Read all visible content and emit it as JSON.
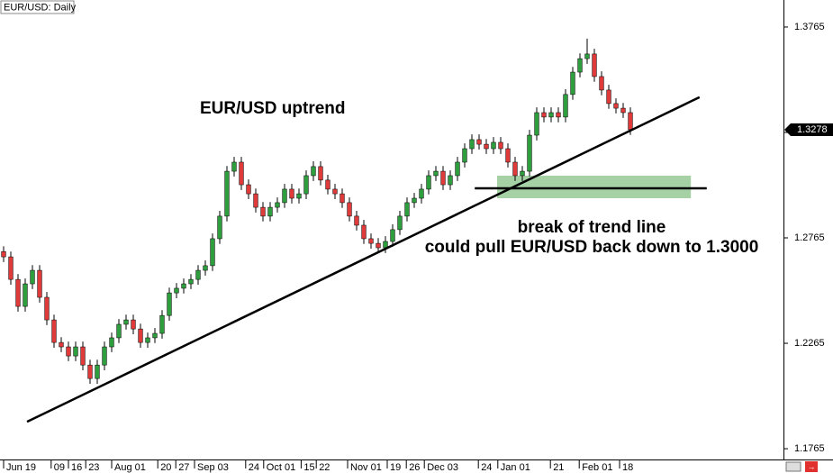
{
  "chart_data": {
    "type": "candlestick",
    "title": "EUR/USD: Daily",
    "annotations": [
      "EUR/USD uptrend",
      "break of trend line",
      "could pull EUR/USD back down to 1.3000"
    ],
    "up_color": "#2e9e3e",
    "down_color": "#e03a3a",
    "open": [
      1.27,
      1.2675,
      1.2568,
      1.244,
      1.2547,
      1.2611,
      1.2483,
      1.2376,
      1.2269,
      1.2248,
      1.2205,
      1.2248,
      1.2162,
      1.2098,
      1.2162,
      1.2248,
      1.2291,
      1.2355,
      1.2376,
      1.2333,
      1.2269,
      1.2291,
      1.2312,
      1.2397,
      1.2504,
      1.2526,
      1.2547,
      1.2568,
      1.2611,
      1.2633,
      1.2761,
      1.2868,
      1.3081,
      1.3124,
      1.3017,
      1.2974,
      1.291,
      1.2868,
      1.291,
      1.2932,
      1.2996,
      1.2953,
      1.2974,
      1.306,
      1.3103,
      1.3039,
      1.2996,
      1.2974,
      1.2932,
      1.2868,
      1.2825,
      1.2761,
      1.2739,
      1.2718,
      1.2748,
      1.2804,
      1.2868,
      1.2932,
      1.2953,
      1.2996,
      1.306,
      1.3081,
      1.3017,
      1.306,
      1.3124,
      1.3188,
      1.3231,
      1.3209,
      1.3188,
      1.3218,
      1.3188,
      1.3124,
      1.306,
      1.3081,
      1.3252,
      1.3359,
      1.3338,
      1.3359,
      1.3338,
      1.3445,
      1.3551,
      1.3615,
      1.3637,
      1.353,
      1.3466,
      1.3402,
      1.338,
      1.3359
    ],
    "high": [
      1.2725,
      1.27,
      1.2593,
      1.2572,
      1.2636,
      1.2636,
      1.2508,
      1.2401,
      1.2294,
      1.2273,
      1.2273,
      1.2273,
      1.2187,
      1.2187,
      1.2273,
      1.2316,
      1.238,
      1.2401,
      1.2401,
      1.2358,
      1.2316,
      1.2337,
      1.2422,
      1.2529,
      1.2551,
      1.2572,
      1.2593,
      1.2636,
      1.2658,
      1.2786,
      1.2893,
      1.3106,
      1.3149,
      1.3149,
      1.3042,
      1.2999,
      1.2935,
      1.2935,
      1.2957,
      1.3021,
      1.3021,
      1.2999,
      1.3085,
      1.3128,
      1.3128,
      1.3064,
      1.3021,
      1.2999,
      1.2957,
      1.2893,
      1.285,
      1.2786,
      1.2764,
      1.2773,
      1.2829,
      1.2893,
      1.2957,
      1.2978,
      1.3021,
      1.3085,
      1.3106,
      1.3106,
      1.3085,
      1.3149,
      1.3213,
      1.3256,
      1.3256,
      1.3234,
      1.3243,
      1.3243,
      1.3213,
      1.3149,
      1.3106,
      1.3277,
      1.3384,
      1.3384,
      1.3384,
      1.3384,
      1.347,
      1.3576,
      1.364,
      1.371,
      1.3662,
      1.3555,
      1.3491,
      1.3427,
      1.3405,
      1.3384
    ],
    "low": [
      1.265,
      1.2543,
      1.2415,
      1.2415,
      1.2522,
      1.2458,
      1.2351,
      1.2244,
      1.2223,
      1.218,
      1.218,
      1.2137,
      1.2073,
      1.2073,
      1.2137,
      1.2223,
      1.2266,
      1.233,
      1.2308,
      1.2244,
      1.2244,
      1.2266,
      1.2287,
      1.2372,
      1.2479,
      1.2501,
      1.2522,
      1.2543,
      1.2586,
      1.2608,
      1.2736,
      1.2843,
      1.3056,
      1.2992,
      1.2949,
      1.2885,
      1.2843,
      1.2843,
      1.2885,
      1.2907,
      1.2928,
      1.2928,
      1.2949,
      1.3035,
      1.3014,
      1.2971,
      1.2949,
      1.2907,
      1.2843,
      1.28,
      1.2736,
      1.2714,
      1.2693,
      1.2693,
      1.2723,
      1.2779,
      1.2843,
      1.2907,
      1.2928,
      1.2971,
      1.3035,
      1.2992,
      1.2992,
      1.3035,
      1.3099,
      1.3163,
      1.3184,
      1.3163,
      1.3163,
      1.3163,
      1.3099,
      1.3035,
      1.3035,
      1.3056,
      1.3227,
      1.3313,
      1.3313,
      1.3313,
      1.3313,
      1.342,
      1.3526,
      1.359,
      1.3505,
      1.3441,
      1.3377,
      1.3355,
      1.3334,
      1.3253
    ],
    "close": [
      1.2675,
      1.2568,
      1.244,
      1.2547,
      1.2611,
      1.2483,
      1.2376,
      1.2269,
      1.2248,
      1.2205,
      1.2248,
      1.2162,
      1.2098,
      1.2162,
      1.2248,
      1.2291,
      1.2355,
      1.2376,
      1.2333,
      1.2269,
      1.2291,
      1.2312,
      1.2397,
      1.2504,
      1.2526,
      1.2547,
      1.2568,
      1.2611,
      1.2633,
      1.2761,
      1.2868,
      1.3081,
      1.3124,
      1.3017,
      1.2974,
      1.291,
      1.2868,
      1.291,
      1.2932,
      1.2996,
      1.2953,
      1.2974,
      1.306,
      1.3103,
      1.3039,
      1.2996,
      1.2974,
      1.2932,
      1.2868,
      1.2825,
      1.2761,
      1.2739,
      1.2718,
      1.2748,
      1.2804,
      1.2868,
      1.2932,
      1.2953,
      1.2996,
      1.306,
      1.3081,
      1.3017,
      1.306,
      1.3124,
      1.3188,
      1.3231,
      1.3209,
      1.3188,
      1.3218,
      1.3188,
      1.3124,
      1.306,
      1.3081,
      1.3252,
      1.3359,
      1.3338,
      1.3359,
      1.3338,
      1.3445,
      1.3551,
      1.3615,
      1.3637,
      1.353,
      1.3466,
      1.3402,
      1.338,
      1.3359,
      1.3278
    ],
    "xlim": [
      -0.5,
      108.25
    ],
    "xticks": [
      {
        "value": 0,
        "label": "Jun 19"
      },
      {
        "value": 6.6,
        "label": "09"
      },
      {
        "value": 9,
        "label": "16"
      },
      {
        "value": 11.4,
        "label": "23"
      },
      {
        "value": 15,
        "label": "Aug 01"
      },
      {
        "value": 21.4,
        "label": "20"
      },
      {
        "value": 23.9,
        "label": "27"
      },
      {
        "value": 26.5,
        "label": "Sep 03"
      },
      {
        "value": 33.6,
        "label": "24"
      },
      {
        "value": 36.1,
        "label": "Oct 01"
      },
      {
        "value": 41.3,
        "label": "15"
      },
      {
        "value": 43.4,
        "label": "22"
      },
      {
        "value": 47.75,
        "label": "Nov 01"
      },
      {
        "value": 53.25,
        "label": "19"
      },
      {
        "value": 55.9,
        "label": "26"
      },
      {
        "value": 58.4,
        "label": "Dec 03"
      },
      {
        "value": 65.9,
        "label": "24"
      },
      {
        "value": 68.6,
        "label": "Jan 01"
      },
      {
        "value": 75.9,
        "label": "21"
      },
      {
        "value": 79.9,
        "label": "Feb 01"
      },
      {
        "value": 85.5,
        "label": "18"
      }
    ],
    "ylim": [
      1.1714,
      1.3893
    ],
    "yticks": [
      1.1765,
      1.2265,
      1.2765,
      1.3265,
      1.3765
    ],
    "trendline": {
      "x": [
        3.25,
        96.6
      ],
      "y": [
        1.1893,
        1.3432
      ]
    },
    "support": {
      "x": [
        65.4,
        97.6
      ],
      "y": [
        1.3,
        1.3
      ]
    },
    "zone": {
      "x": [
        68.5,
        95.4
      ],
      "y": [
        1.2953,
        1.306
      ],
      "color": "#8fc58f"
    }
  }
}
